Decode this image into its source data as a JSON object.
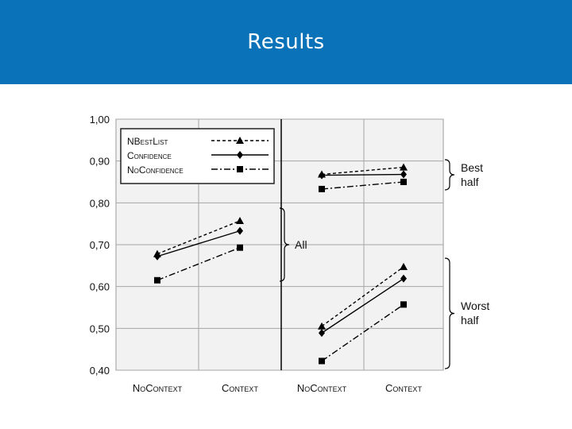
{
  "slide": {
    "title": "Results"
  },
  "chart_data": [
    {
      "type": "line",
      "panel": "left",
      "categories": [
        "NOCONTEXT",
        "CONTEXT"
      ],
      "series": [
        {
          "name": "NBESTLIST",
          "style": "dashed",
          "marker": "triangle",
          "values": [
            0.678,
            0.757
          ]
        },
        {
          "name": "CONFIDENCE",
          "style": "solid",
          "marker": "diamond",
          "values": [
            0.672,
            0.733
          ]
        },
        {
          "name": "NOCONFIDENCE",
          "style": "dashdot",
          "marker": "square",
          "values": [
            0.615,
            0.693
          ]
        }
      ],
      "group_label": "All",
      "ylim": [
        0.4,
        1.0
      ]
    },
    {
      "type": "line",
      "panel": "right",
      "categories": [
        "NOCONTEXT",
        "CONTEXT"
      ],
      "groups": [
        {
          "label": "Best half",
          "series": [
            {
              "name": "NBESTLIST",
              "values": [
                0.868,
                0.885
              ]
            },
            {
              "name": "CONFIDENCE",
              "values": [
                0.866,
                0.868
              ]
            },
            {
              "name": "NOCONFIDENCE",
              "values": [
                0.833,
                0.85
              ]
            }
          ]
        },
        {
          "label": "Worst half",
          "series": [
            {
              "name": "NBESTLIST",
              "values": [
                0.505,
                0.647
              ]
            },
            {
              "name": "CONFIDENCE",
              "values": [
                0.489,
                0.619
              ]
            },
            {
              "name": "NOCONFIDENCE",
              "values": [
                0.422,
                0.557
              ]
            }
          ]
        }
      ],
      "ylim": [
        0.4,
        1.0
      ]
    }
  ],
  "axis": {
    "yticks": [
      1.0,
      0.9,
      0.8,
      0.7,
      0.6,
      0.5,
      0.4
    ],
    "ytick_labels": [
      "1,00",
      "0,90",
      "0,80",
      "0,70",
      "0,60",
      "0,50",
      "0,40"
    ],
    "xtick_labels": [
      "NoContext",
      "Context",
      "NoContext",
      "Context"
    ],
    "grid": true,
    "ylim": [
      0.4,
      1.0
    ]
  },
  "legend": {
    "placement": "top-left",
    "items": [
      {
        "label": "NBestList",
        "style": "dashed",
        "marker": "triangle"
      },
      {
        "label": "Confidence",
        "style": "solid",
        "marker": "diamond"
      },
      {
        "label": "NoConfidence",
        "style": "dashdot",
        "marker": "square"
      }
    ]
  },
  "annotations": {
    "all": "All",
    "best": [
      "Best",
      "half"
    ],
    "worst": [
      "Worst",
      "half"
    ]
  },
  "colors": {
    "header": "#0a72b8",
    "plot_bg": "#f2f2f2",
    "grid": "#a6a6a6",
    "ink": "#000000"
  }
}
